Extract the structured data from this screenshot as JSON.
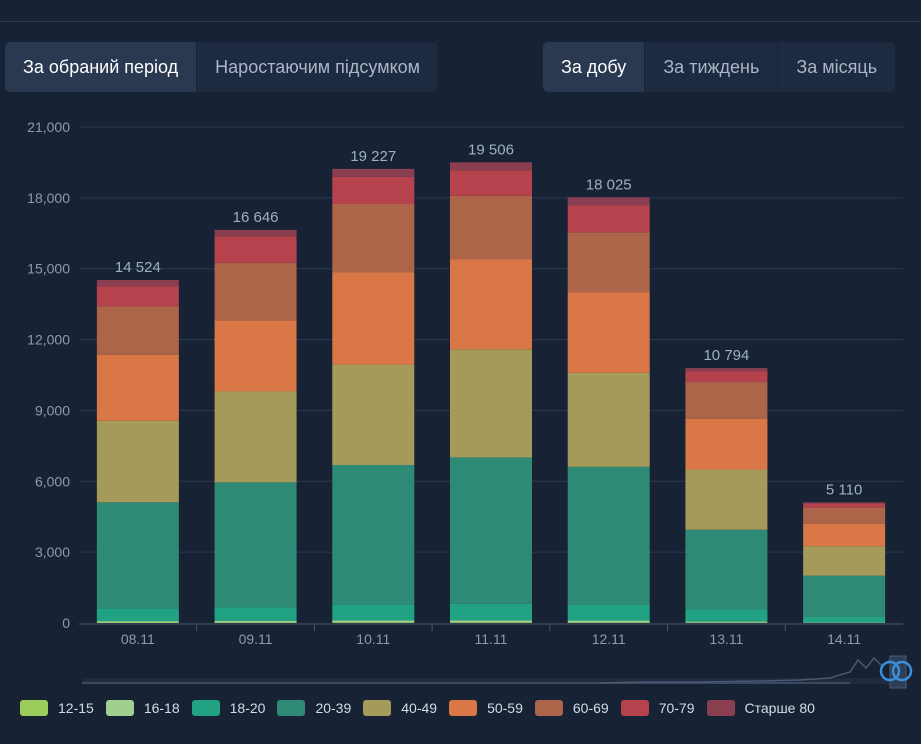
{
  "mode_toggle": {
    "period_label": "За обраний період",
    "cumulative_label": "Наростаючим підсумком"
  },
  "range_toggle": {
    "day_label": "За добу",
    "week_label": "За тиждень",
    "month_label": "За місяць"
  },
  "chart_data": {
    "type": "bar",
    "stacked": true,
    "categories": [
      "08.11",
      "09.11",
      "10.11",
      "11.11",
      "12.11",
      "13.11",
      "14.11"
    ],
    "totals": [
      "14 524",
      "16 646",
      "19 227",
      "19 506",
      "18 025",
      "10 794",
      "5 110"
    ],
    "ylim": [
      0,
      21000
    ],
    "yticks": [
      "0",
      "3,000",
      "6,000",
      "9,000",
      "12,000",
      "15,000",
      "18,000",
      "21,000"
    ],
    "grid": true,
    "legend_position": "bottom",
    "series": [
      {
        "name": "12-15",
        "color": "#9ccc5a",
        "values": [
          20,
          25,
          30,
          30,
          28,
          15,
          5
        ]
      },
      {
        "name": "16-18",
        "color": "#9fd08f",
        "values": [
          60,
          70,
          80,
          80,
          75,
          45,
          20
        ]
      },
      {
        "name": "18-20",
        "color": "#21a383",
        "values": [
          530,
          560,
          680,
          700,
          660,
          490,
          230
        ]
      },
      {
        "name": "20-39",
        "color": "#2f8a75",
        "values": [
          4500,
          5300,
          5900,
          6200,
          5850,
          3400,
          1750
        ]
      },
      {
        "name": "40-49",
        "color": "#a69a5a",
        "values": [
          3450,
          3850,
          4250,
          4580,
          3980,
          2550,
          1250
        ]
      },
      {
        "name": "50-59",
        "color": "#d97746",
        "values": [
          2800,
          3000,
          3900,
          3800,
          3400,
          2150,
          950
        ]
      },
      {
        "name": "60-69",
        "color": "#ad6549",
        "values": [
          2050,
          2450,
          2900,
          2700,
          2550,
          1550,
          680
        ]
      },
      {
        "name": "70-79",
        "color": "#b5424d",
        "values": [
          850,
          1120,
          1150,
          1080,
          1150,
          450,
          170
        ]
      },
      {
        "name": "Старше 80",
        "color": "#8a3f50",
        "values": [
          264,
          271,
          337,
          336,
          332,
          144,
          55
        ]
      }
    ]
  }
}
